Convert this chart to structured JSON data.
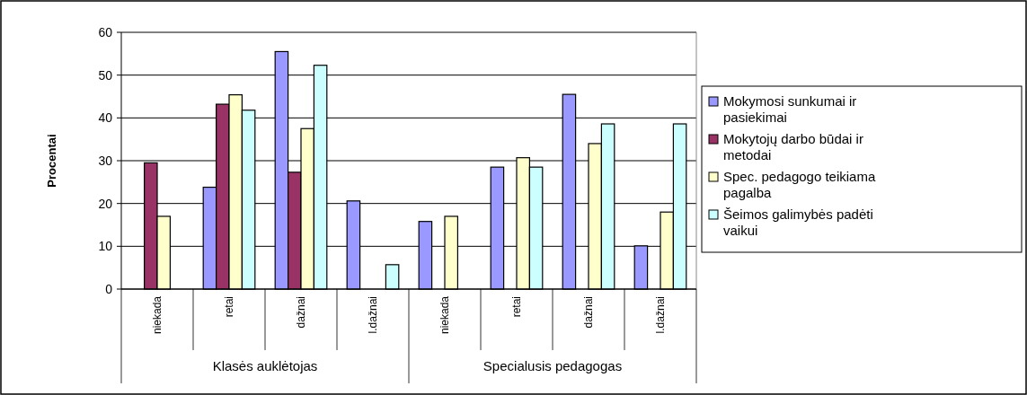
{
  "chart_data": {
    "type": "bar",
    "ylabel": "Procentai",
    "categories": [
      "niekada",
      "retai",
      "dažnai",
      "l.dažnai",
      "niekada",
      "retai",
      "dažnai",
      "l.dažnai"
    ],
    "series": [
      {
        "name": "Mokymosi sunkumai ir pasiekimai",
        "color": "#9999ff",
        "values": [
          null,
          23.8,
          55.5,
          20.6,
          15.8,
          28.5,
          45.5,
          10.1
        ]
      },
      {
        "name": "Mokytojų darbo būdai ir metodai",
        "color": "#993366",
        "values": [
          29.5,
          43.2,
          27.3,
          null,
          null,
          null,
          null,
          null
        ]
      },
      {
        "name": "Spec. pedagogo teikiama pagalba",
        "color": "#ffffcc",
        "values": [
          17.0,
          45.4,
          37.5,
          null,
          17.0,
          30.7,
          34.0,
          18.0
        ]
      },
      {
        "name": "Šeimos galimybės padėti vaikui",
        "color": "#ccffff",
        "values": [
          null,
          41.8,
          52.3,
          5.7,
          null,
          28.5,
          38.6,
          38.6
        ]
      }
    ],
    "annotations": [
      "Klasės auklėtojas",
      "Specialusis pedagogas"
    ],
    "ylim": [
      0,
      60
    ],
    "yticks": [
      0,
      10,
      20,
      30,
      40,
      50,
      60
    ],
    "grid": "y",
    "legend": "right"
  }
}
